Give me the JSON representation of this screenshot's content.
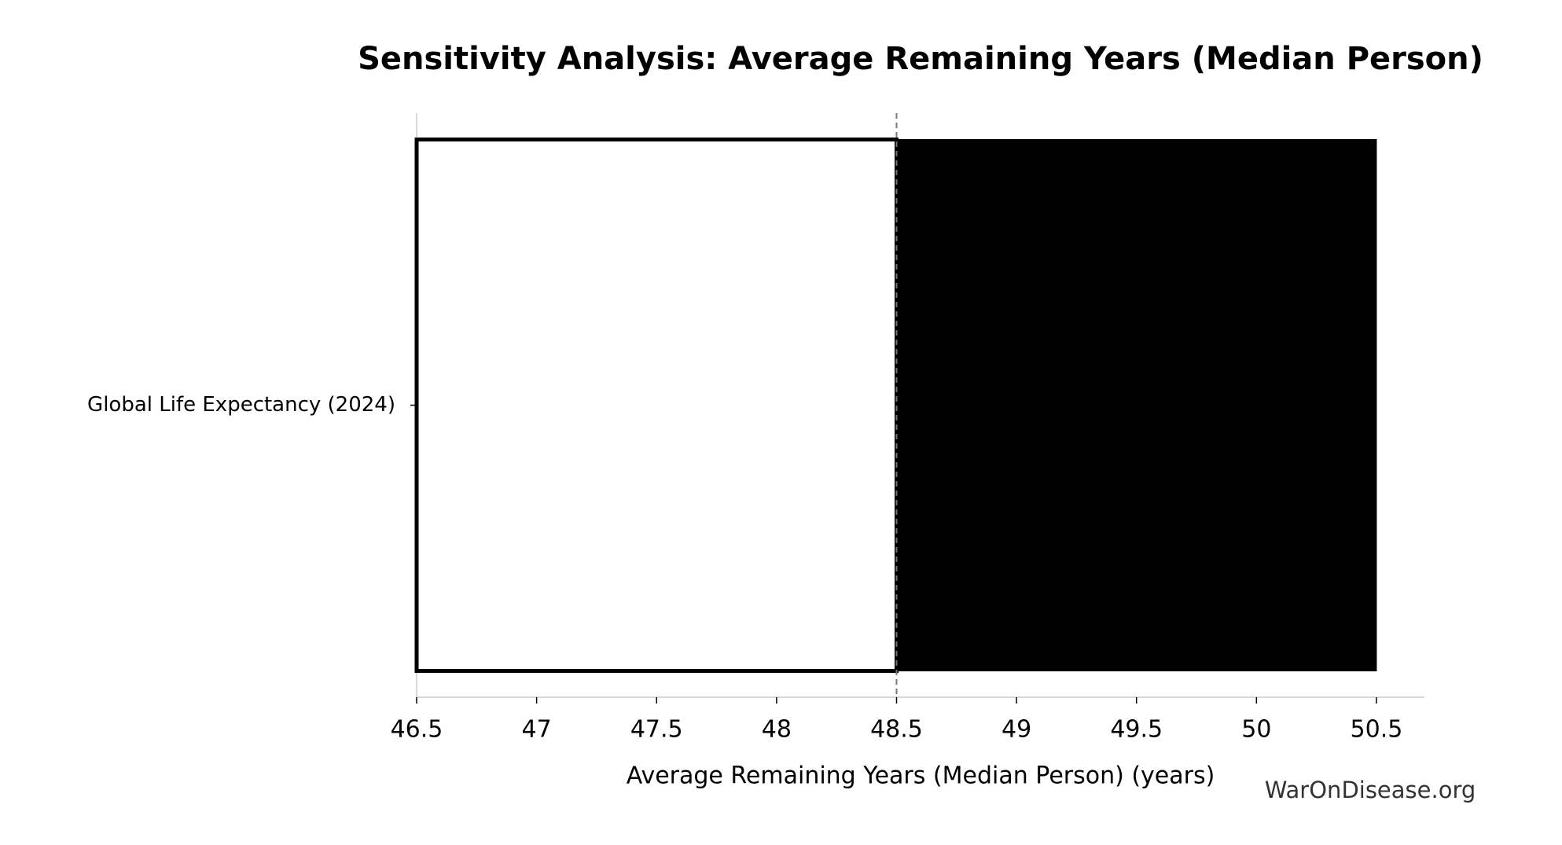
{
  "chart_data": {
    "type": "tornado",
    "title": "Sensitivity Analysis: Average Remaining Years (Median Person)",
    "xlabel": "Average Remaining Years (Median Person) (years)",
    "watermark": "WarOnDisease.org",
    "categories": [
      "Global Life Expectancy (2024)"
    ],
    "baseline": 48.5,
    "low_values": [
      46.5
    ],
    "high_values": [
      50.5
    ],
    "low_color": "#ffffff",
    "high_color": "#000000",
    "xlim": [
      46.5,
      50.7
    ],
    "xticks": [
      46.5,
      47,
      47.5,
      48,
      48.5,
      49,
      49.5,
      50,
      50.5
    ]
  }
}
